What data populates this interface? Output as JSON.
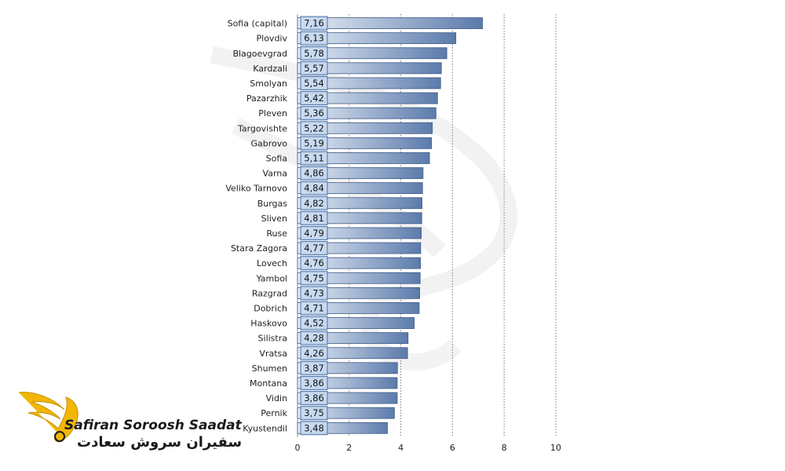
{
  "chart_data": {
    "type": "bar",
    "orientation": "horizontal",
    "categories": [
      "Sofia (capital)",
      "Plovdiv",
      "Blagoevgrad",
      "Kardzali",
      "Smolyan",
      "Pazarzhik",
      "Pleven",
      "Targovishte",
      "Gabrovo",
      "Sofia",
      "Varna",
      "Veliko Tarnovo",
      "Burgas",
      "Sliven",
      "Ruse",
      "Stara Zagora",
      "Lovech",
      "Yambol",
      "Razgrad",
      "Dobrich",
      "Haskovo",
      "Silistra",
      "Vratsa",
      "Shumen",
      "Montana",
      "Vidin",
      "Pernik",
      "Kyustendil"
    ],
    "values": [
      7.16,
      6.13,
      5.78,
      5.57,
      5.54,
      5.42,
      5.36,
      5.22,
      5.19,
      5.11,
      4.86,
      4.84,
      4.82,
      4.81,
      4.79,
      4.77,
      4.76,
      4.75,
      4.73,
      4.71,
      4.52,
      4.28,
      4.26,
      3.87,
      3.86,
      3.86,
      3.75,
      3.48
    ],
    "value_labels": [
      "7,16",
      "6,13",
      "5,78",
      "5,57",
      "5,54",
      "5,42",
      "5,36",
      "5,22",
      "5,19",
      "5,11",
      "4,86",
      "4,84",
      "4,82",
      "4,81",
      "4,79",
      "4,77",
      "4,76",
      "4,75",
      "4,73",
      "4,71",
      "4,52",
      "4,28",
      "4,26",
      "3,87",
      "3,86",
      "3,86",
      "3,75",
      "3,48"
    ],
    "xlim": [
      0,
      10
    ],
    "xticks": [
      "0",
      "2",
      "4",
      "6",
      "8",
      "10"
    ],
    "grid": "vertical dotted",
    "bar_color": "#5b7bab",
    "label_box_color": "#c6d9f1"
  },
  "watermark": {
    "brand_en": "Safiran Soroosh Saadat",
    "brand_fa": "سفیران سروش سعادت",
    "accent_color": "#f2b705"
  }
}
